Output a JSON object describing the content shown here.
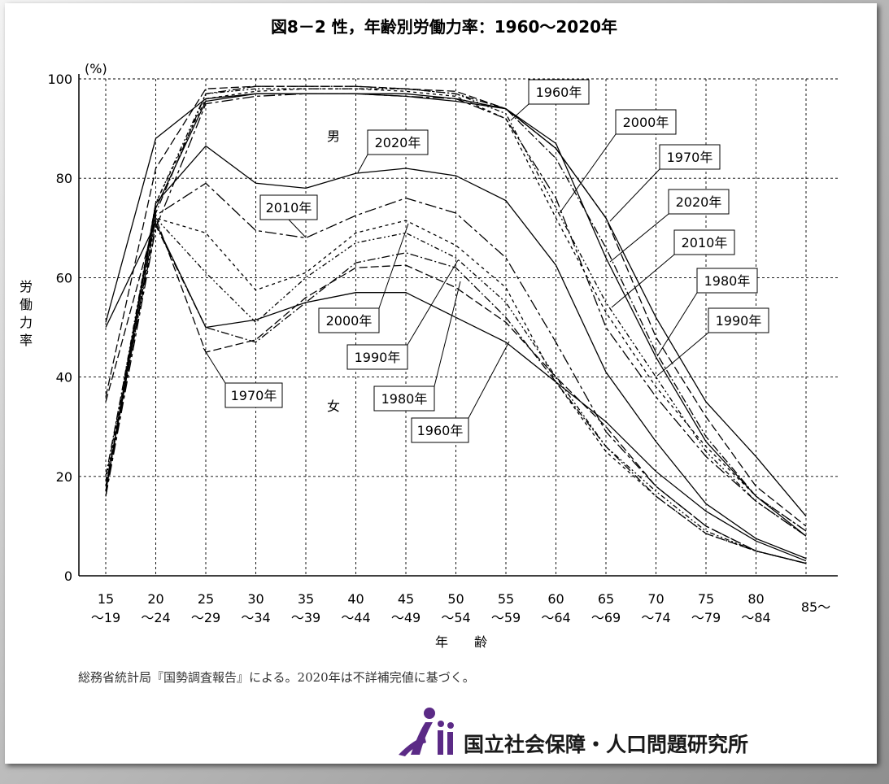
{
  "title": "図8－2 性，年齢別労働力率：1960～2020年",
  "ylabel": "労働力率",
  "yunit": "(%)",
  "xlabel": "年　　齢",
  "sex_labels": {
    "male": "男",
    "female": "女"
  },
  "note": "総務省統計局『国勢調査報告』による。2020年は不詳補完値に基づく。",
  "organization": "国立社会保障・人口問題研究所",
  "chart_data": {
    "type": "line",
    "title": "図8－2 性，年齢別労働力率：1960～2020年",
    "ylabel": "労働力率",
    "xlabel": "年　　齢",
    "ylim": [
      0,
      100
    ],
    "yticks": [
      0,
      20,
      40,
      60,
      80,
      100
    ],
    "grid": true,
    "categories": [
      {
        "top": "15",
        "bottom": "～19"
      },
      {
        "top": "20",
        "bottom": "～24"
      },
      {
        "top": "25",
        "bottom": "～29"
      },
      {
        "top": "30",
        "bottom": "～34"
      },
      {
        "top": "35",
        "bottom": "～39"
      },
      {
        "top": "40",
        "bottom": "～44"
      },
      {
        "top": "45",
        "bottom": "～49"
      },
      {
        "top": "50",
        "bottom": "～54"
      },
      {
        "top": "55",
        "bottom": "～59"
      },
      {
        "top": "60",
        "bottom": "～64"
      },
      {
        "top": "65",
        "bottom": "～69"
      },
      {
        "top": "70",
        "bottom": "～74"
      },
      {
        "top": "75",
        "bottom": "～79"
      },
      {
        "top": "80",
        "bottom": "～84"
      },
      {
        "top": "85～",
        "bottom": ""
      }
    ],
    "series": [
      {
        "name": "1960年",
        "sex": "男",
        "dash": "",
        "values": [
          51,
          88,
          96,
          97,
          97,
          97,
          97,
          96,
          94,
          86,
          72,
          52,
          35,
          24,
          12
        ]
      },
      {
        "name": "1970年",
        "sex": "男",
        "dash": "10,4",
        "values": [
          36,
          82,
          98,
          98.5,
          98.5,
          98.5,
          98,
          97.5,
          94,
          86,
          72,
          48,
          32,
          18,
          10
        ]
      },
      {
        "name": "1980年",
        "sex": "男",
        "dash": "10,3,2,3",
        "values": [
          20,
          73,
          97,
          98.5,
          98.5,
          98.5,
          98,
          97,
          94,
          84,
          66,
          45,
          28,
          16,
          9
        ]
      },
      {
        "name": "1990年",
        "sex": "男",
        "dash": "6,3,2,3,2,3",
        "values": [
          19,
          75,
          97,
          98,
          98,
          98,
          98,
          97,
          93,
          74,
          55,
          40,
          25,
          15,
          8
        ]
      },
      {
        "name": "2000年",
        "sex": "男",
        "dash": "4,4",
        "values": [
          18,
          75,
          96,
          97.5,
          98,
          98,
          97.5,
          96.5,
          92,
          72,
          53,
          38,
          26,
          16,
          9
        ]
      },
      {
        "name": "2010年",
        "sex": "男",
        "dash": "14,4,4,4",
        "values": [
          16,
          70,
          95,
          96.5,
          97,
          97,
          96.5,
          96,
          92,
          76,
          50,
          36,
          24,
          15,
          8
        ]
      },
      {
        "name": "2020年",
        "sex": "男",
        "dash": "",
        "values": [
          17,
          74,
          95.5,
          97,
          97,
          97,
          96.5,
          95.5,
          94,
          87,
          64,
          44,
          27,
          16,
          8
        ]
      },
      {
        "name": "1960年",
        "sex": "女",
        "dash": "",
        "values": [
          50,
          71,
          50,
          51.5,
          55,
          57,
          57,
          52,
          47,
          39,
          31,
          21,
          13,
          7,
          3
        ]
      },
      {
        "name": "1970年",
        "sex": "女",
        "dash": "10,4",
        "values": [
          35,
          72,
          45,
          47.5,
          56,
          62,
          62.5,
          58,
          51,
          40,
          30,
          18,
          10,
          5,
          2.5
        ]
      },
      {
        "name": "1980年",
        "sex": "女",
        "dash": "10,3,2,3",
        "values": [
          18,
          70.5,
          50,
          47,
          55,
          63,
          65,
          62,
          52,
          39,
          26,
          16,
          8.5,
          5,
          2.5
        ]
      },
      {
        "name": "1990年",
        "sex": "女",
        "dash": "6,3,2,3,2,3",
        "values": [
          17,
          72,
          61,
          51,
          60,
          67,
          69,
          64,
          55,
          40,
          26,
          17,
          9,
          5,
          2.5
        ]
      },
      {
        "name": "2000年",
        "sex": "女",
        "dash": "4,4",
        "values": [
          17,
          72,
          69,
          57.5,
          61,
          69,
          71.5,
          66.5,
          58,
          39,
          25,
          16,
          8.5,
          5,
          2.5
        ]
      },
      {
        "name": "2010年",
        "sex": "女",
        "dash": "14,4,4,4",
        "values": [
          16,
          72.5,
          79,
          69.5,
          68,
          72.5,
          76,
          73,
          64,
          47,
          29,
          18,
          10,
          5,
          2.5
        ]
      },
      {
        "name": "2020年",
        "sex": "女",
        "dash": "",
        "values": [
          17,
          75,
          86.5,
          79,
          78,
          81,
          82,
          80.5,
          75.5,
          62.5,
          41,
          27,
          14.5,
          7.5,
          3.5
        ]
      }
    ],
    "annotations": [
      {
        "text": "1960年",
        "target": "男 55～59"
      },
      {
        "text": "2000年",
        "target": "男 60～64"
      },
      {
        "text": "1970年",
        "target": "男 65～69"
      },
      {
        "text": "2020年",
        "target": "男 65～69"
      },
      {
        "text": "2010年",
        "target": "男 65～69"
      },
      {
        "text": "1980年",
        "target": "男 70～74"
      },
      {
        "text": "1990年",
        "target": "男 70～74"
      },
      {
        "text": "2020年",
        "target": "女 40～44"
      },
      {
        "text": "2010年",
        "target": "女 35～39"
      },
      {
        "text": "2000年",
        "target": "女 45～49"
      },
      {
        "text": "1990年",
        "target": "女 50～54"
      },
      {
        "text": "1980年",
        "target": "女 50～54"
      },
      {
        "text": "1960年",
        "target": "女 55～59"
      },
      {
        "text": "1970年",
        "target": "女 25～29"
      }
    ]
  }
}
